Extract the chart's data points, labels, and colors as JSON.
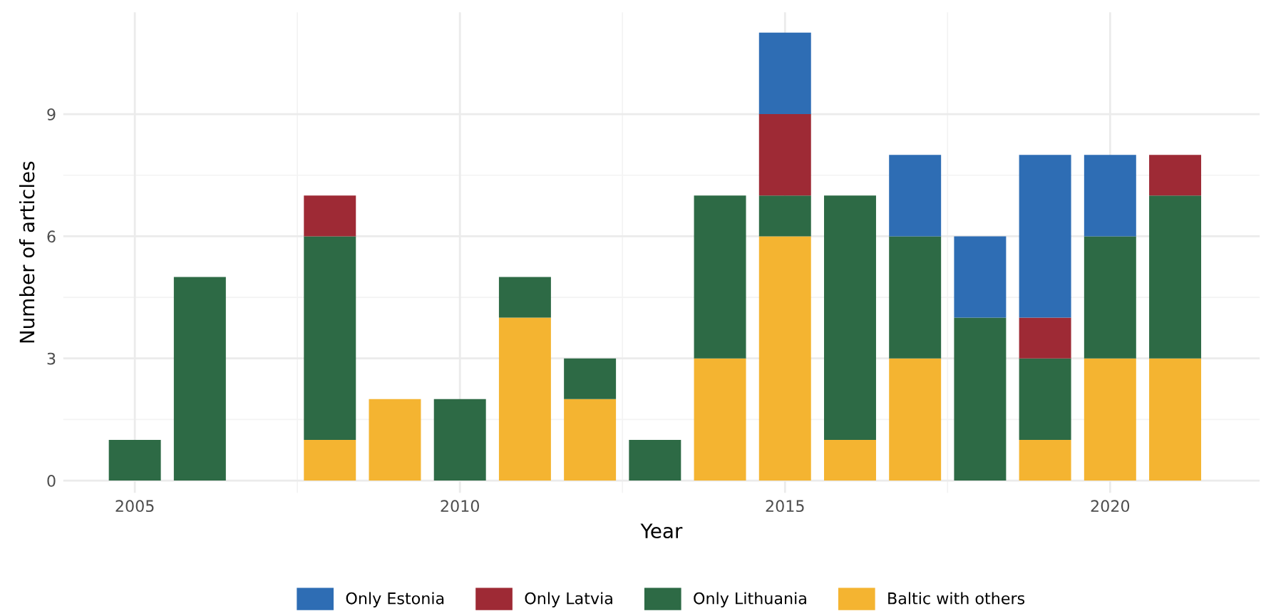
{
  "chart_data": {
    "type": "bar",
    "stacked": true,
    "xlabel": "Year",
    "ylabel": "Number of articles",
    "x": [
      2005,
      2006,
      2007,
      2008,
      2009,
      2010,
      2011,
      2012,
      2013,
      2014,
      2015,
      2016,
      2017,
      2018,
      2019,
      2020,
      2021
    ],
    "series": [
      {
        "name": "Baltic with others",
        "color": "#f4b431",
        "values": [
          0,
          0,
          0,
          1,
          2,
          0,
          4,
          2,
          0,
          3,
          6,
          1,
          3,
          0,
          1,
          3,
          3
        ]
      },
      {
        "name": "Only Lithuania",
        "color": "#2d6a45",
        "values": [
          1,
          5,
          0,
          5,
          0,
          2,
          1,
          1,
          1,
          4,
          1,
          6,
          3,
          4,
          2,
          3,
          4
        ]
      },
      {
        "name": "Only Latvia",
        "color": "#9e2a35",
        "values": [
          0,
          0,
          0,
          1,
          0,
          0,
          0,
          0,
          0,
          0,
          2,
          0,
          0,
          0,
          1,
          0,
          1
        ]
      },
      {
        "name": "Only Estonia",
        "color": "#2e6db4",
        "values": [
          0,
          0,
          0,
          0,
          0,
          0,
          0,
          0,
          0,
          0,
          2,
          0,
          2,
          2,
          4,
          2,
          0
        ]
      }
    ],
    "xlim": [
      2003.9,
      2022.3
    ],
    "xticks": [
      2005,
      2010,
      2015,
      2020
    ],
    "ylim": [
      -0.3,
      11.5
    ],
    "yticks": [
      0,
      3,
      6,
      9
    ],
    "grid": true,
    "legend": "bottom"
  }
}
